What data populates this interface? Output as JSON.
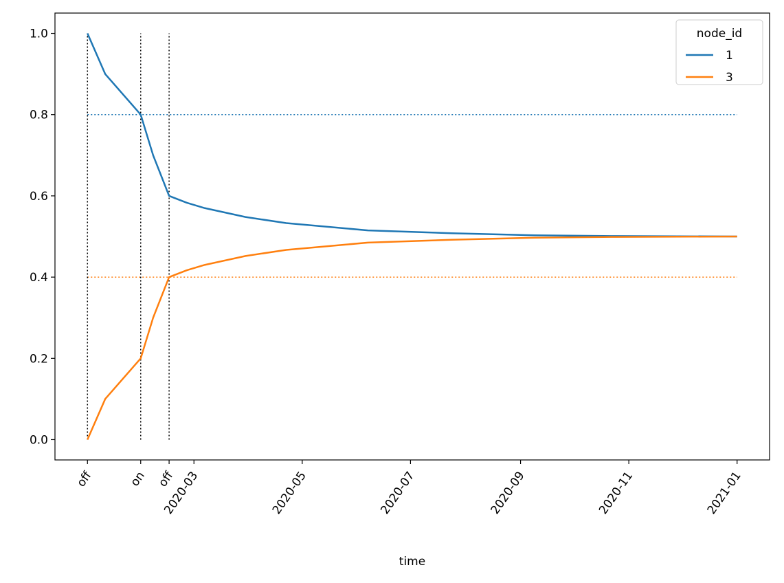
{
  "chart_data": {
    "type": "line",
    "x_label": "time",
    "x": [
      "2020-01-01",
      "2020-01-11",
      "2020-01-21",
      "2020-01-31",
      "2020-02-07",
      "2020-02-16",
      "2020-02-26",
      "2020-03-07",
      "2020-03-30",
      "2020-04-22",
      "2020-06-07",
      "2020-07-24",
      "2020-09-09",
      "2020-10-25",
      "2021-01-01"
    ],
    "series": [
      {
        "name": "1",
        "color": "#1f77b4",
        "values": [
          1.0,
          0.9,
          0.85,
          0.8,
          0.7,
          0.6,
          0.583,
          0.57,
          0.548,
          0.533,
          0.515,
          0.508,
          0.503,
          0.501,
          0.5
        ]
      },
      {
        "name": "3",
        "color": "#ff7f0e",
        "values": [
          0.0,
          0.1,
          0.15,
          0.2,
          0.3,
          0.4,
          0.417,
          0.43,
          0.452,
          0.467,
          0.485,
          0.492,
          0.497,
          0.499,
          0.5
        ]
      }
    ],
    "hlines": [
      {
        "y": 0.8,
        "color": "#1f77b4"
      },
      {
        "y": 0.4,
        "color": "#ff7f0e"
      }
    ],
    "events": [
      {
        "x": "2020-01-01",
        "label": "off"
      },
      {
        "x": "2020-01-31",
        "label": "on"
      },
      {
        "x": "2020-02-16",
        "label": "off"
      }
    ],
    "event_color": "#000000",
    "ylim": [
      -0.05,
      1.05
    ],
    "yticks": [
      {
        "value": 0,
        "label": "0.0"
      },
      0.2,
      0.4,
      0.6,
      0.8,
      {
        "value": 1,
        "label": "1.0"
      }
    ],
    "xticks": [
      "2020-03",
      "2020-05",
      "2020-07",
      "2020-09",
      "2020-11",
      "2021-01"
    ],
    "legend_title": "node_id",
    "legend_position": "upper right",
    "grid": false
  }
}
